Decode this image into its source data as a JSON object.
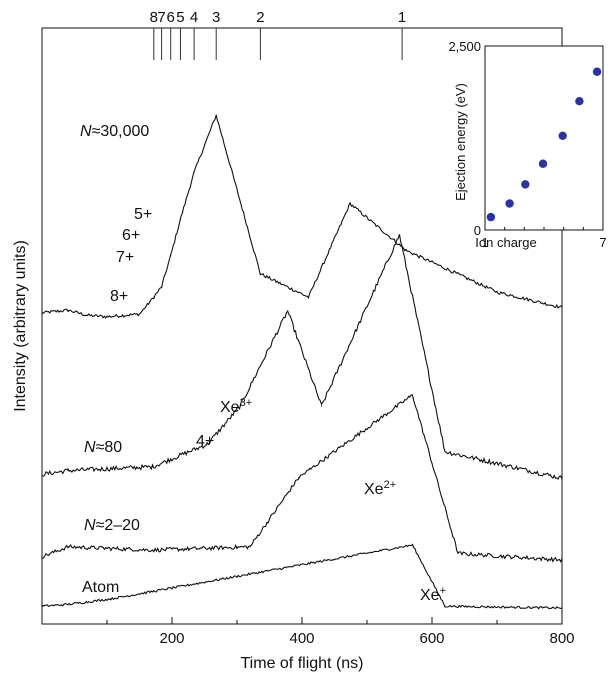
{
  "chart_data": [
    {
      "type": "line",
      "title": "",
      "xlabel": "Time of flight (ns)",
      "ylabel": "Intensity (arbitrary units)",
      "xlim": [
        0,
        800
      ],
      "xticks": [
        200,
        400,
        600,
        800
      ],
      "yticks": "none",
      "top_axis": {
        "labels": [
          "8",
          "7",
          "6",
          "5",
          "4",
          "3",
          "2",
          "1"
        ],
        "positions_ns": [
          172,
          184,
          198,
          213,
          234,
          268,
          336,
          554
        ]
      },
      "series": [
        {
          "name": "N≈30,000",
          "label_parts": [
            "N",
            "≈30,000"
          ],
          "peak_labels": [
            "8+",
            "7+",
            "6+",
            "5+"
          ],
          "points": [
            [
              0,
              0.02
            ],
            [
              40,
              0.03
            ],
            [
              70,
              0.01
            ],
            [
              100,
              0.005
            ],
            [
              150,
              0.015
            ],
            [
              172,
              0.08
            ],
            [
              184,
              0.12
            ],
            [
              198,
              0.24
            ],
            [
              213,
              0.38
            ],
            [
              234,
              0.56
            ],
            [
              268,
              0.78
            ],
            [
              336,
              0.17
            ],
            [
              410,
              0.08
            ],
            [
              474,
              0.44
            ],
            [
              560,
              0.26
            ],
            [
              700,
              0.1
            ],
            [
              800,
              0.04
            ]
          ]
        },
        {
          "name": "N≈80",
          "label_parts": [
            "N",
            "≈80"
          ],
          "peak_labels": [
            "4+",
            "Xe",
            "3+"
          ],
          "points": [
            [
              0,
              0.02
            ],
            [
              40,
              0.03
            ],
            [
              170,
              0.04
            ],
            [
              255,
              0.1
            ],
            [
              305,
              0.2
            ],
            [
              378,
              0.45
            ],
            [
              430,
              0.2
            ],
            [
              550,
              0.65
            ],
            [
              620,
              0.08
            ],
            [
              800,
              0.01
            ]
          ]
        },
        {
          "name": "N≈2–20",
          "label_parts": [
            "N",
            "≈2–20"
          ],
          "peak_labels": [
            "Xe",
            "2+"
          ],
          "points": [
            [
              0,
              0.01
            ],
            [
              40,
              0.04
            ],
            [
              170,
              0.03
            ],
            [
              320,
              0.04
            ],
            [
              395,
              0.25
            ],
            [
              570,
              0.5
            ],
            [
              640,
              0.02
            ],
            [
              800,
              0.0
            ]
          ]
        },
        {
          "name": "Atom",
          "label_parts": [
            "Atom"
          ],
          "peak_labels": [
            "Xe",
            "+"
          ],
          "points": [
            [
              0,
              0.01
            ],
            [
              40,
              0.02
            ],
            [
              105,
              0.05
            ],
            [
              570,
              0.35
            ],
            [
              620,
              0.01
            ],
            [
              800,
              0.0
            ]
          ]
        }
      ]
    },
    {
      "type": "scatter",
      "title": "",
      "xlabel": "Ion charge",
      "ylabel": "Ejection energy (eV)",
      "xlim": [
        1,
        7
      ],
      "ylim": [
        0,
        2500
      ],
      "xtick_labels": [
        "1",
        "7"
      ],
      "ytick_labels": [
        "0",
        "2,500"
      ],
      "x": [
        1.3,
        2.25,
        3.05,
        3.95,
        4.95,
        5.8,
        6.7
      ],
      "y": [
        175,
        360,
        620,
        900,
        1280,
        1750,
        2150
      ]
    }
  ]
}
